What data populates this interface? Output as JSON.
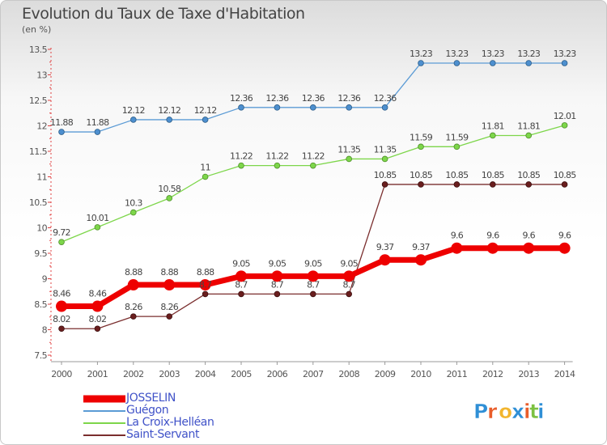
{
  "title": "Evolution du Taux de Taxe d'Habitation",
  "unit_label": "(en %)",
  "brand": {
    "logo_text": "Proxiti",
    "letter_colors": [
      "#2f8fd6",
      "#e95d2a",
      "#f2b52e",
      "#2f8fd6",
      "#e95d2a",
      "#7cc142",
      "#2f8fd6"
    ]
  },
  "chart_data": {
    "type": "line",
    "title": "Evolution du Taux de Taxe d'Habitation",
    "ylabel": "(en %)",
    "xlabel": "",
    "x": [
      "2000",
      "2001",
      "2002",
      "2003",
      "2004",
      "2005",
      "2006",
      "2007",
      "2008",
      "2009",
      "2010",
      "2011",
      "2012",
      "2013",
      "2014"
    ],
    "ylim": [
      7.5,
      13.5
    ],
    "yticks": [
      "7.5",
      "8",
      "8.5",
      "9",
      "9.5",
      "10",
      "10.5",
      "11",
      "11.5",
      "12",
      "12.5",
      "13",
      "13.5"
    ],
    "grid": false,
    "legend_position": "bottom-left",
    "series": [
      {
        "name": "JOSSELIN",
        "color": "#ee0000",
        "values": [
          8.46,
          8.46,
          8.88,
          8.88,
          8.88,
          9.05,
          9.05,
          9.05,
          9.05,
          9.37,
          9.37,
          9.6,
          9.6,
          9.6,
          9.6
        ],
        "labels": [
          "8.46",
          "8.46",
          "8.88",
          "8.88",
          "8.88",
          "9.05",
          "9.05",
          "9.05",
          "9.05",
          "9.37",
          "9.37",
          "9.6",
          "9.6",
          "9.6",
          "9.6"
        ]
      },
      {
        "name": "Guégon",
        "color": "#5b9bd5",
        "values": [
          11.88,
          11.88,
          12.12,
          12.12,
          12.12,
          12.36,
          12.36,
          12.36,
          12.36,
          12.36,
          13.23,
          13.23,
          13.23,
          13.23,
          13.23
        ],
        "labels": [
          "11.88",
          "11.88",
          "12.12",
          "12.12",
          "12.12",
          "12.36",
          "12.36",
          "12.36",
          "12.36",
          "12.36",
          "13.23",
          "13.23",
          "13.23",
          "13.23",
          "13.23"
        ]
      },
      {
        "name": "La Croix-Helléan",
        "color": "#7dd64a",
        "values": [
          9.72,
          10.01,
          10.3,
          10.58,
          11,
          11.22,
          11.22,
          11.22,
          11.35,
          11.35,
          11.59,
          11.59,
          11.81,
          11.81,
          12.01
        ],
        "labels": [
          "9.72",
          "10.01",
          "10.3",
          "10.58",
          "11",
          "11.22",
          "11.22",
          "11.22",
          "11.35",
          "11.35",
          "11.59",
          "11.59",
          "11.81",
          "11.81",
          "12.01"
        ]
      },
      {
        "name": "Saint-Servant",
        "color": "#7a2e2e",
        "values": [
          8.02,
          8.02,
          8.26,
          8.26,
          8.7,
          8.7,
          8.7,
          8.7,
          8.7,
          10.85,
          10.85,
          10.85,
          10.85,
          10.85,
          10.85
        ],
        "labels": [
          "8.02",
          "8.02",
          "8.26",
          "8.26",
          "8.7",
          "8.7",
          "8.7",
          "8.7",
          "8.7",
          "10.85",
          "10.85",
          "10.85",
          "10.85",
          "10.85",
          "10.85"
        ]
      }
    ]
  }
}
